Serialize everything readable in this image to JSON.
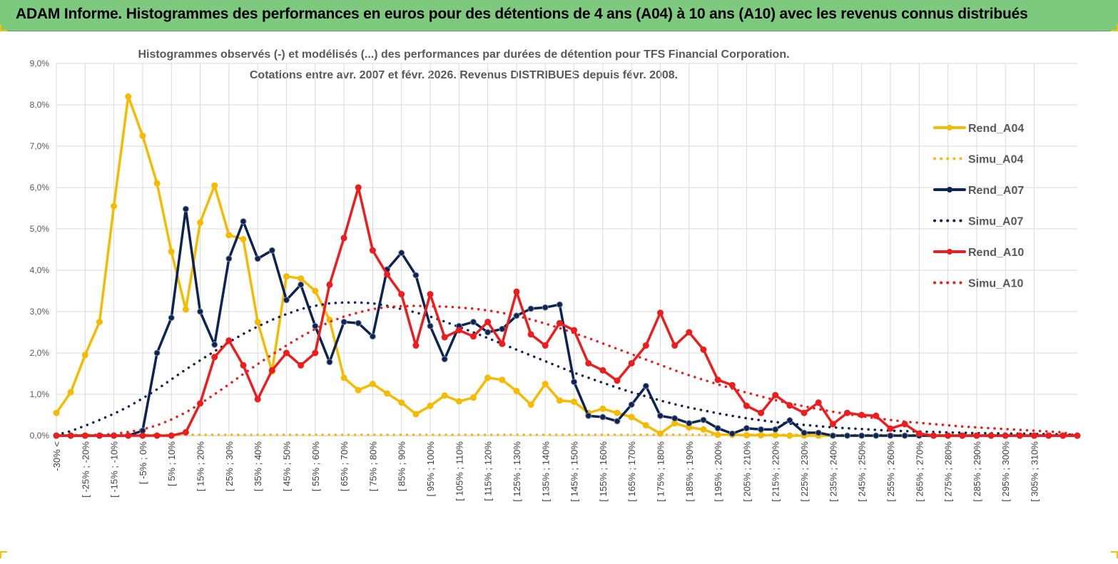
{
  "header": {
    "title": "ADAM Informe. Histogrammes des performances en euros pour des détentions de 4 ans (A04) à 10 ans (A10) avec les revenus connus distribués"
  },
  "chart_data": {
    "type": "line",
    "title_lines": [
      "Histogrammes observés (-) et modélisés (...) des performances par durées de détention pour TFS Financial Corporation.",
      "Cotations entre avr. 2007 et févr. 2026. Revenus DISTRIBUES depuis févr. 2008."
    ],
    "ylim": [
      0,
      9
    ],
    "yticks": [
      0,
      1,
      2,
      3,
      4,
      5,
      6,
      7,
      8,
      9
    ],
    "ytick_labels": [
      "0,0%",
      "1,0%",
      "2,0%",
      "3,0%",
      "4,0%",
      "5,0%",
      "6,0%",
      "7,0%",
      "8,0%",
      "9,0%"
    ],
    "grid": true,
    "legend_position": "right",
    "n_points": 72,
    "xtick_labels": [
      "-30% <",
      "[ -25% ; -20%",
      "[ -15% ; -10%",
      "[ -5% ; 0%",
      "[ 5% ; 10%",
      "[ 15% ; 20%",
      "[ 25% ; 30%",
      "[ 35% ; 40%",
      "[ 45% ; 50%",
      "[ 55% ; 60%",
      "[ 65% ; 70%",
      "[ 75% ; 80%",
      "[ 85% ; 90%",
      "[ 95% ; 100%",
      "[ 105% ; 110%",
      "[ 115% ; 120%",
      "[ 125% ; 130%",
      "[ 135% ; 140%",
      "[ 145% ; 150%",
      "[ 155% ; 160%",
      "[ 165% ; 170%",
      "[ 175% ; 180%",
      "[ 185% ; 190%",
      "[ 195% ; 200%",
      "[ 205% ; 210%",
      "[ 215% ; 220%",
      "[ 225% ; 230%",
      "[ 235% ; 240%",
      "[ 245% ; 250%",
      "[ 255% ; 260%",
      "[ 265% ; 270%",
      "[ 275% ; 280%",
      "[ 285% ; 290%",
      "[ 295% ; 300%",
      "[ 305% ; 310%"
    ],
    "xtick_indices": [
      0,
      2,
      4,
      6,
      8,
      10,
      12,
      14,
      16,
      18,
      20,
      22,
      24,
      26,
      28,
      30,
      32,
      34,
      36,
      38,
      40,
      42,
      44,
      46,
      48,
      50,
      52,
      54,
      56,
      58,
      60,
      62,
      64,
      66,
      68
    ],
    "series": [
      {
        "name": "Rend_A04",
        "style": "solid",
        "color": "#f5bb00",
        "markers": true,
        "end_index": 54,
        "values": [
          0.55,
          1.05,
          1.95,
          2.75,
          5.55,
          8.2,
          7.25,
          6.1,
          4.45,
          3.05,
          5.15,
          6.05,
          4.85,
          4.75,
          2.75,
          1.55,
          3.85,
          3.8,
          3.5,
          2.8,
          1.4,
          1.1,
          1.25,
          1.02,
          0.8,
          0.52,
          0.72,
          0.97,
          0.83,
          0.92,
          1.4,
          1.35,
          1.08,
          0.75,
          1.25,
          0.85,
          0.82,
          0.55,
          0.65,
          0.55,
          0.45,
          0.25,
          0.05,
          0.3,
          0.2,
          0.15,
          0.02,
          0.02,
          0.01,
          0.01,
          0.01,
          0.0,
          0.0,
          0.0,
          0.0
        ]
      },
      {
        "name": "Simu_A04",
        "style": "dotted",
        "color": "#f5bb00",
        "markers": false,
        "end_index": 71,
        "values": [
          0.02,
          0.02,
          0.02,
          0.02,
          0.02,
          0.02,
          0.02,
          0.02,
          0.02,
          0.02,
          0.02,
          0.02,
          0.02,
          0.02,
          0.02,
          0.02,
          0.02,
          0.02,
          0.02,
          0.02,
          0.02,
          0.02,
          0.02,
          0.02,
          0.02,
          0.02,
          0.02,
          0.02,
          0.02,
          0.02,
          0.02,
          0.02,
          0.02,
          0.02,
          0.02,
          0.02,
          0.02,
          0.02,
          0.02,
          0.02,
          0.02,
          0.02,
          0.02,
          0.02,
          0.02,
          0.02,
          0.02,
          0.02,
          0.02,
          0.02,
          0.02,
          0.02,
          0.02,
          0.02,
          0.02,
          0.02,
          0.02,
          0.02,
          0.02,
          0.02,
          0.02,
          0.02,
          0.02,
          0.02,
          0.02,
          0.02,
          0.02,
          0.02,
          0.02,
          0.02,
          0.02,
          0.02
        ]
      },
      {
        "name": "Rend_A07",
        "style": "solid",
        "color": "#0d2452",
        "markers": true,
        "end_index": 71,
        "values": [
          0.0,
          0.0,
          0.0,
          0.0,
          0.0,
          0.0,
          0.12,
          2.0,
          2.85,
          5.48,
          3.0,
          2.2,
          4.28,
          5.18,
          4.28,
          4.48,
          3.28,
          3.65,
          2.65,
          1.78,
          2.75,
          2.72,
          2.4,
          4.02,
          4.42,
          3.88,
          2.65,
          1.85,
          2.65,
          2.75,
          2.5,
          2.58,
          2.9,
          3.07,
          3.1,
          3.17,
          1.3,
          0.48,
          0.45,
          0.35,
          0.75,
          1.2,
          0.48,
          0.42,
          0.3,
          0.38,
          0.18,
          0.05,
          0.18,
          0.15,
          0.15,
          0.37,
          0.07,
          0.07,
          0.0,
          0.0,
          0.0,
          0.0,
          0.0,
          0.0,
          0.0,
          0.0,
          0.0,
          0.0,
          0.0,
          0.0,
          0.0,
          0.0,
          0.0,
          0.0,
          0.0,
          0.0
        ]
      },
      {
        "name": "Simu_A07",
        "style": "dotted",
        "color": "#0d2452",
        "markers": false,
        "end_index": 71,
        "values": [
          0.02,
          0.11,
          0.24,
          0.38,
          0.53,
          0.7,
          0.9,
          1.12,
          1.36,
          1.6,
          1.82,
          2.04,
          2.26,
          2.46,
          2.64,
          2.8,
          2.94,
          3.06,
          3.14,
          3.2,
          3.22,
          3.22,
          3.2,
          3.14,
          3.06,
          2.98,
          2.88,
          2.76,
          2.63,
          2.5,
          2.36,
          2.22,
          2.08,
          1.94,
          1.8,
          1.66,
          1.52,
          1.4,
          1.28,
          1.16,
          1.05,
          0.95,
          0.85,
          0.76,
          0.68,
          0.61,
          0.54,
          0.48,
          0.42,
          0.37,
          0.33,
          0.29,
          0.26,
          0.23,
          0.2,
          0.18,
          0.16,
          0.14,
          0.12,
          0.11,
          0.1,
          0.09,
          0.08,
          0.07,
          0.06,
          0.06,
          0.05,
          0.05,
          0.04,
          0.04,
          0.03,
          0.02
        ]
      },
      {
        "name": "Rend_A10",
        "style": "solid",
        "color": "#ee1c1c",
        "markers": true,
        "end_index": 71,
        "values": [
          0.0,
          0.0,
          0.0,
          0.0,
          0.0,
          0.0,
          0.0,
          0.0,
          0.0,
          0.08,
          0.78,
          1.9,
          2.3,
          1.7,
          0.88,
          1.58,
          2.0,
          1.7,
          2.0,
          3.65,
          4.78,
          6.0,
          4.48,
          3.9,
          3.42,
          2.18,
          3.42,
          2.38,
          2.55,
          2.4,
          2.75,
          2.22,
          3.48,
          2.45,
          2.18,
          2.72,
          2.55,
          1.75,
          1.58,
          1.33,
          1.75,
          2.18,
          2.97,
          2.18,
          2.5,
          2.08,
          1.35,
          1.22,
          0.72,
          0.55,
          0.98,
          0.73,
          0.55,
          0.8,
          0.28,
          0.55,
          0.5,
          0.48,
          0.17,
          0.28,
          0.05,
          0.0,
          0.0,
          0.0,
          0.0,
          0.0,
          0.0,
          0.0,
          0.0,
          0.0,
          0.0,
          0.0
        ]
      },
      {
        "name": "Simu_A10",
        "style": "dotted",
        "color": "#ee1c1c",
        "markers": false,
        "end_index": 71,
        "values": [
          0.0,
          0.0,
          0.0,
          0.02,
          0.04,
          0.09,
          0.15,
          0.25,
          0.39,
          0.56,
          0.77,
          1.0,
          1.24,
          1.49,
          1.73,
          1.96,
          2.18,
          2.39,
          2.58,
          2.75,
          2.88,
          2.98,
          3.06,
          3.11,
          3.13,
          3.14,
          3.13,
          3.12,
          3.1,
          3.07,
          3.03,
          2.97,
          2.9,
          2.81,
          2.71,
          2.6,
          2.48,
          2.36,
          2.23,
          2.1,
          1.97,
          1.84,
          1.71,
          1.58,
          1.46,
          1.35,
          1.24,
          1.14,
          1.04,
          0.95,
          0.86,
          0.78,
          0.71,
          0.64,
          0.58,
          0.52,
          0.47,
          0.42,
          0.38,
          0.34,
          0.31,
          0.28,
          0.25,
          0.22,
          0.2,
          0.18,
          0.16,
          0.14,
          0.12,
          0.1,
          0.08,
          0.0
        ]
      }
    ]
  }
}
